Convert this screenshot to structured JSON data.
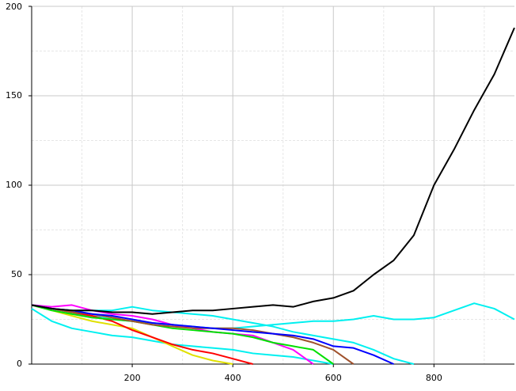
{
  "chart_data": {
    "type": "line",
    "x": [
      0,
      40,
      80,
      120,
      160,
      200,
      240,
      280,
      320,
      360,
      400,
      440,
      480,
      520,
      560,
      600,
      640,
      680,
      720,
      760,
      800,
      840,
      880,
      920,
      960
    ],
    "xlim": [
      0,
      960
    ],
    "ylim": [
      0,
      200
    ],
    "xticks": [
      200,
      400,
      600,
      800
    ],
    "yticks": [
      0,
      50,
      100,
      150,
      200
    ],
    "x_minor_grid": [
      100,
      300,
      500,
      700,
      900
    ],
    "y_minor_grid": [
      25,
      75,
      125,
      175
    ],
    "grid": true,
    "series": [
      {
        "color": "#00f0f0",
        "values": [
          33,
          30,
          28,
          27,
          25,
          24,
          23,
          22,
          21,
          20,
          20,
          21,
          22,
          23,
          24,
          24,
          25,
          27,
          25,
          25,
          26,
          30,
          34,
          31,
          25
        ]
      },
      {
        "color": "#00f0f0",
        "values": [
          33,
          31,
          30,
          30,
          30,
          32,
          30,
          29,
          28,
          27,
          25,
          23,
          21,
          18,
          16,
          14,
          12,
          8,
          3,
          0,
          null,
          null,
          null,
          null,
          null
        ]
      },
      {
        "color": "#00f0f0",
        "values": [
          31,
          24,
          20,
          18,
          16,
          15,
          13,
          11,
          10,
          9,
          8,
          6,
          5,
          4,
          2,
          0,
          null,
          null,
          null,
          null,
          null,
          null,
          null,
          null,
          null
        ]
      },
      {
        "color": "#e0e000",
        "values": [
          33,
          30,
          27,
          24,
          22,
          20,
          15,
          10,
          5,
          2,
          0,
          null,
          null,
          null,
          null,
          null,
          null,
          null,
          null,
          null,
          null,
          null,
          null,
          null,
          null
        ]
      },
      {
        "color": "#ff0000",
        "values": [
          33,
          31,
          29,
          27,
          24,
          19,
          15,
          11,
          8,
          6,
          3,
          0,
          null,
          null,
          null,
          null,
          null,
          null,
          null,
          null,
          null,
          null,
          null,
          null,
          null
        ]
      },
      {
        "color": "#ff00ff",
        "values": [
          33,
          32,
          33,
          30,
          28,
          27,
          25,
          22,
          20,
          18,
          17,
          16,
          12,
          8,
          0,
          null,
          null,
          null,
          null,
          null,
          null,
          null,
          null,
          null,
          null
        ]
      },
      {
        "color": "#00e000",
        "values": [
          33,
          30,
          28,
          26,
          25,
          24,
          22,
          20,
          19,
          18,
          17,
          15,
          12,
          10,
          8,
          0,
          null,
          null,
          null,
          null,
          null,
          null,
          null,
          null,
          null
        ]
      },
      {
        "color": "#a0522d",
        "values": [
          33,
          31,
          29,
          28,
          26,
          24,
          22,
          21,
          20,
          20,
          20,
          19,
          17,
          15,
          12,
          8,
          0,
          null,
          null,
          null,
          null,
          null,
          null,
          null,
          null
        ]
      },
      {
        "color": "#0000ff",
        "values": [
          33,
          31,
          30,
          28,
          27,
          25,
          23,
          22,
          21,
          20,
          19,
          18,
          17,
          16,
          14,
          10,
          9,
          5,
          0,
          null,
          null,
          null,
          null,
          null,
          null
        ]
      },
      {
        "color": "#000000",
        "values": [
          33,
          31,
          30,
          30,
          29,
          29,
          28,
          29,
          30,
          30,
          31,
          32,
          33,
          32,
          35,
          37,
          41,
          50,
          58,
          72,
          100,
          120,
          142,
          162,
          188
        ]
      }
    ]
  }
}
